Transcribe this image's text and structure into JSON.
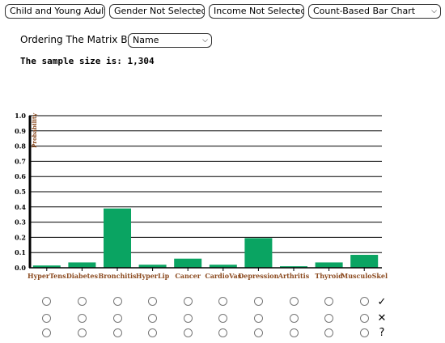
{
  "filters": {
    "age": "Child and Young Adult",
    "gender": "Gender Not Selected",
    "income": "Income Not Selected",
    "chart_type": "Count-Based Bar Chart"
  },
  "ordering": {
    "label": "Ordering The Matrix By:",
    "selected": "Name"
  },
  "sample": {
    "text": "The sample size is: 1,304"
  },
  "icons": {
    "dropdown": "chevron-down-icon",
    "accept": "checkmark-icon",
    "reject": "x-icon",
    "unknown": "question-icon"
  },
  "marks": {
    "accept": "✓",
    "reject": "✕",
    "unknown": "?"
  },
  "chart_data": {
    "type": "bar",
    "ylabel": "Probability",
    "ylim": [
      0,
      1.0
    ],
    "yticks": [
      "0.0",
      "0.1",
      "0.2",
      "0.3",
      "0.4",
      "0.5",
      "0.6",
      "0.7",
      "0.8",
      "0.9",
      "1.0"
    ],
    "categories": [
      "HyperTens",
      "Diabetes",
      "Bronchitis",
      "HyperLip",
      "Cancer",
      "CardioVas",
      "Depression",
      "Arthritis",
      "Thyroid",
      "MusculoSkel"
    ],
    "values": [
      0.015,
      0.035,
      0.39,
      0.02,
      0.06,
      0.02,
      0.195,
      0.01,
      0.035,
      0.085
    ],
    "bar_color": "#0aa462",
    "grid": true
  }
}
